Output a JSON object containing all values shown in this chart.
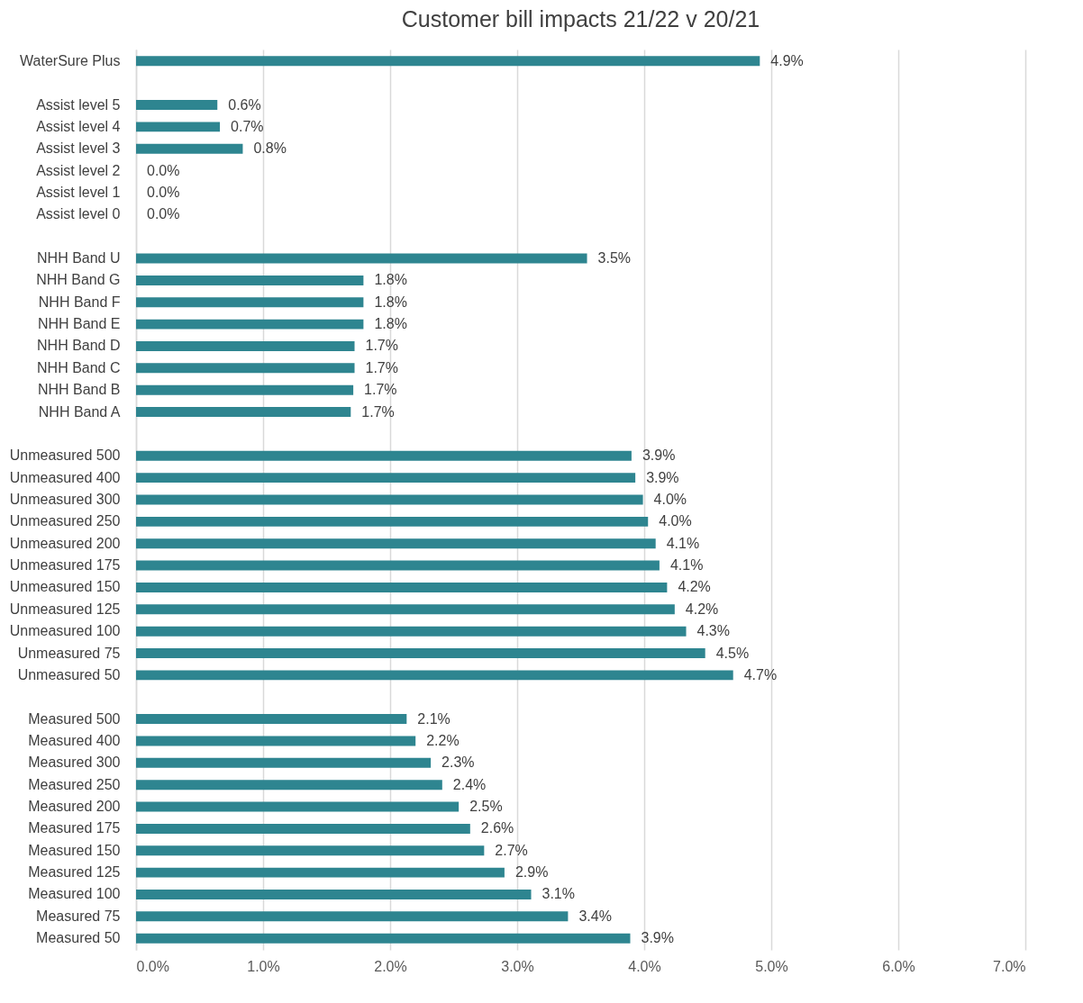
{
  "chart_data": {
    "type": "bar",
    "orientation": "horizontal",
    "title": "Customer bill impacts 21/22 v 20/21",
    "categories": [
      "WaterSure Plus",
      null,
      "Assist level 5",
      "Assist level 4",
      "Assist level 3",
      "Assist level 2",
      "Assist level 1",
      "Assist level 0",
      null,
      "NHH Band U",
      "NHH Band G",
      "NHH Band F",
      "NHH Band E",
      "NHH Band D",
      "NHH Band C",
      "NHH Band B",
      "NHH Band A",
      null,
      "Unmeasured 500",
      "Unmeasured 400",
      "Unmeasured 300",
      "Unmeasured 250",
      "Unmeasured 200",
      "Unmeasured 175",
      "Unmeasured 150",
      "Unmeasured 125",
      "Unmeasured 100",
      "Unmeasured 75",
      "Unmeasured 50",
      null,
      "Measured 500",
      "Measured 400",
      "Measured 300",
      "Measured 250",
      "Measured 200",
      "Measured 175",
      "Measured 150",
      "Measured 125",
      "Measured 100",
      "Measured 75",
      "Measured 50"
    ],
    "values": [
      4.91,
      null,
      0.64,
      0.66,
      0.84,
      0,
      0,
      0,
      null,
      3.55,
      1.79,
      1.79,
      1.79,
      1.72,
      1.72,
      1.71,
      1.69,
      null,
      3.9,
      3.93,
      3.99,
      4.03,
      4.09,
      4.12,
      4.18,
      4.24,
      4.33,
      4.48,
      4.7,
      null,
      2.13,
      2.2,
      2.32,
      2.41,
      2.54,
      2.63,
      2.74,
      2.9,
      3.11,
      3.4,
      3.89
    ],
    "value_labels": [
      "4.9%",
      null,
      "0.6%",
      "0.7%",
      "0.8%",
      "0.0%",
      "0.0%",
      "0.0%",
      null,
      "3.5%",
      "1.8%",
      "1.8%",
      "1.8%",
      "1.7%",
      "1.7%",
      "1.7%",
      "1.7%",
      null,
      "3.9%",
      "3.9%",
      "4.0%",
      "4.0%",
      "4.1%",
      "4.1%",
      "4.2%",
      "4.2%",
      "4.3%",
      "4.5%",
      "4.7%",
      null,
      "2.1%",
      "2.2%",
      "2.3%",
      "2.4%",
      "2.5%",
      "2.6%",
      "2.7%",
      "2.9%",
      "3.1%",
      "3.4%",
      "3.9%"
    ],
    "color": "#2e8590",
    "xlim": [
      0,
      7
    ],
    "xticks": [
      {
        "value": 0,
        "label": "0.0%"
      },
      {
        "value": 1,
        "label": "1.0%"
      },
      {
        "value": 2,
        "label": "2.0%"
      },
      {
        "value": 3,
        "label": "3.0%"
      },
      {
        "value": 4,
        "label": "4.0%"
      },
      {
        "value": 5,
        "label": "5.0%"
      },
      {
        "value": 6,
        "label": "6.0%"
      },
      {
        "value": 7,
        "label": "7.0%"
      }
    ],
    "grid": "x"
  }
}
